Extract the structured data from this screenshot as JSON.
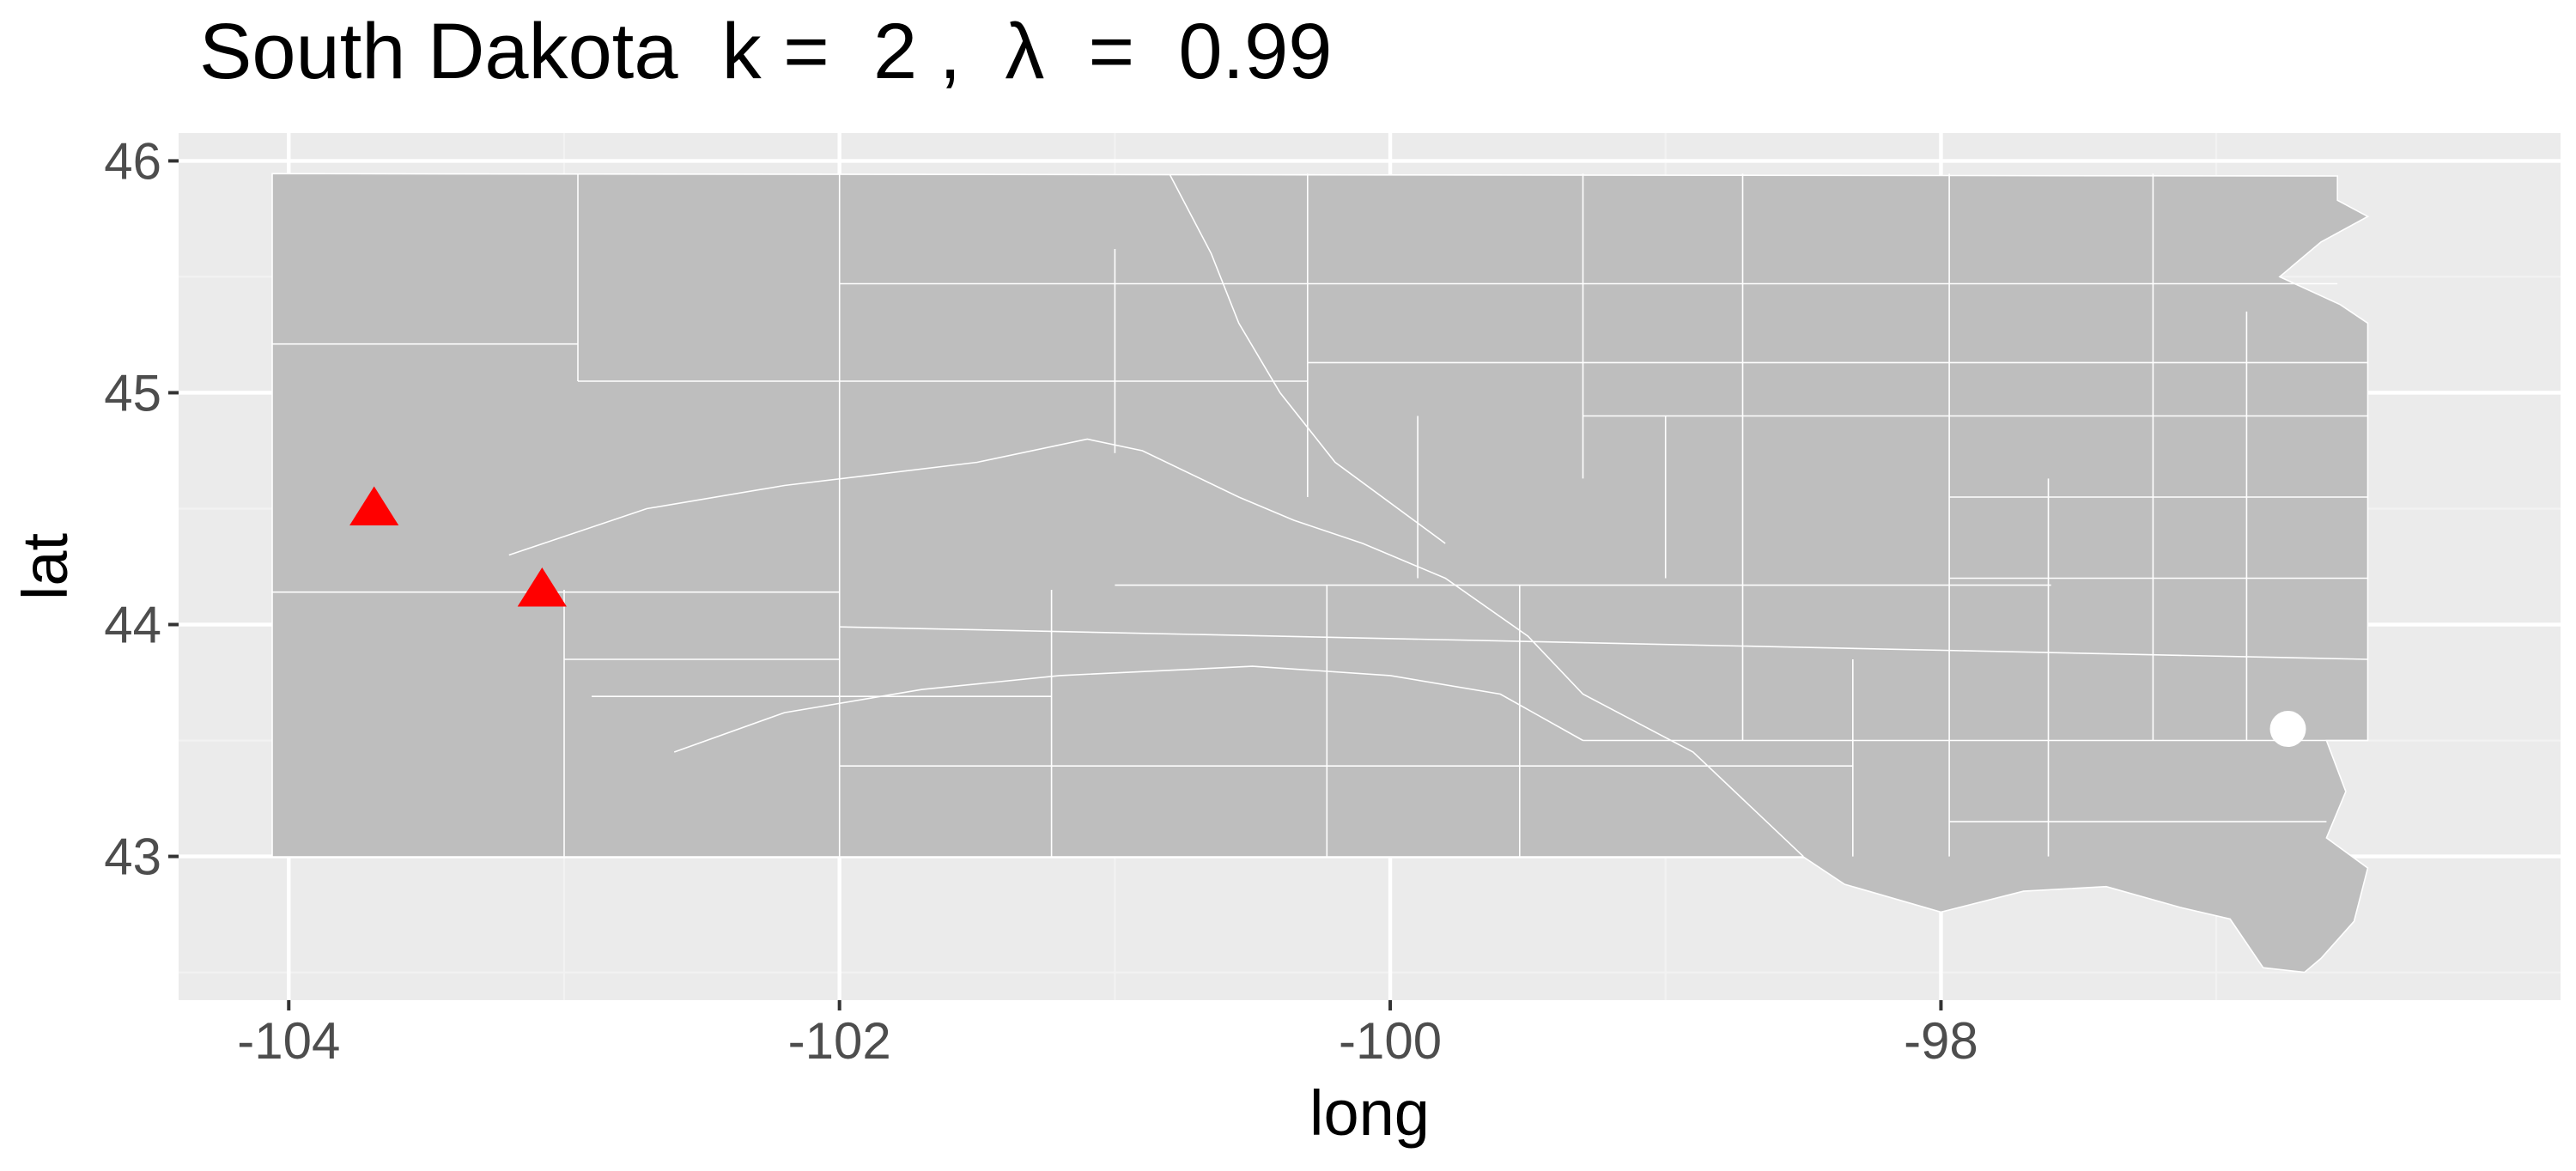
{
  "title": "South Dakota  k =  2 ,  λ  =  0.99",
  "chart_data": {
    "type": "map",
    "region": "South Dakota",
    "xlabel": "long",
    "ylabel": "lat",
    "xlim": [
      -104.4,
      -95.75
    ],
    "ylim": [
      42.38,
      46.12
    ],
    "x_ticks": [
      -104,
      -102,
      -100,
      -98
    ],
    "x_tick_labels": [
      "-104",
      "-102",
      "-100",
      "-98"
    ],
    "y_ticks": [
      43,
      44,
      45,
      46
    ],
    "y_tick_labels": [
      "43",
      "44",
      "45",
      "46"
    ],
    "grid": true,
    "legend": "none",
    "colors": {
      "panel_background": "#ebebeb",
      "grid_major": "#ffffff",
      "grid_minor": "#f2f2f2",
      "region_fill": "#bebebe",
      "border_line": "#ffffff",
      "triangle_marker": "#ff0000",
      "circle_marker": "#ffffff"
    },
    "points": [
      {
        "shape": "triangle",
        "long": -103.69,
        "lat": 44.5
      },
      {
        "shape": "triangle",
        "long": -103.08,
        "lat": 44.15
      },
      {
        "shape": "circle",
        "long": -96.74,
        "lat": 43.55
      }
    ]
  }
}
